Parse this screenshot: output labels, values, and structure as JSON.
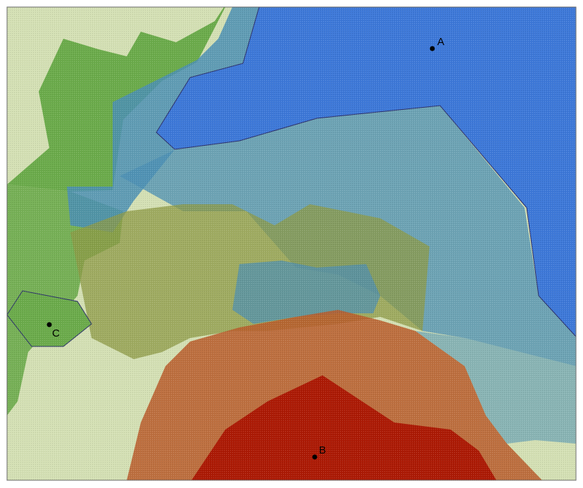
{
  "colors": {
    "green_light": "#d4e0b4",
    "green": "#6bab4b",
    "teal": "#4b8fb4",
    "blue": "#3d78d8",
    "olive": "#8e9a45",
    "orange": "#b85a2a",
    "red": "#ac1a05",
    "outline": "#2b2f6a",
    "marker": "#000000"
  },
  "points": [
    {
      "id": "A",
      "label": "A"
    },
    {
      "id": "B",
      "label": "B"
    },
    {
      "id": "C",
      "label": "C"
    }
  ]
}
